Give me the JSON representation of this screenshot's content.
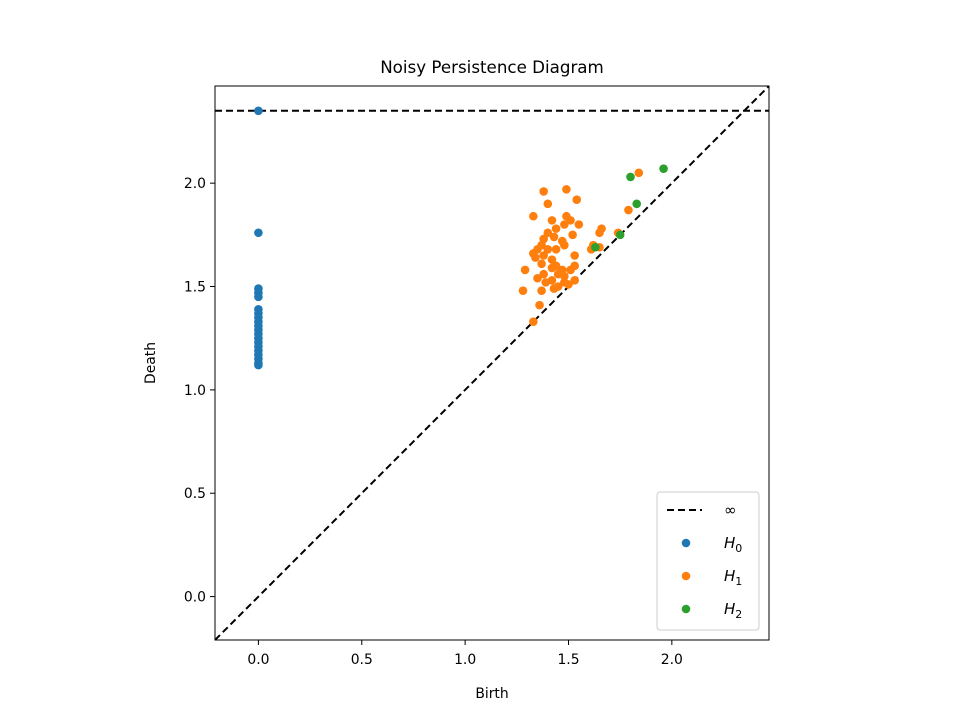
{
  "chart_data": {
    "type": "scatter",
    "title": "Noisy Persistence Diagram",
    "xlabel": "Birth",
    "ylabel": "Death",
    "xlim": [
      -0.21,
      2.47
    ],
    "ylim": [
      -0.21,
      2.47
    ],
    "xticks": [
      0.0,
      0.5,
      1.0,
      1.5,
      2.0
    ],
    "yticks": [
      0.0,
      0.5,
      1.0,
      1.5,
      2.0
    ],
    "xtick_labels": [
      "0.0",
      "0.5",
      "1.0",
      "1.5",
      "2.0"
    ],
    "ytick_labels": [
      "0.0",
      "0.5",
      "1.0",
      "1.5",
      "2.0"
    ],
    "infinity_line": 2.35,
    "legend_placement": "lower right",
    "legend": [
      {
        "kind": "line",
        "label": "∞",
        "color": "#000000"
      },
      {
        "kind": "point",
        "label": "H",
        "sub": "0",
        "color": "#1f77b4"
      },
      {
        "kind": "point",
        "label": "H",
        "sub": "1",
        "color": "#ff7f0e"
      },
      {
        "kind": "point",
        "label": "H",
        "sub": "2",
        "color": "#2ca02c"
      }
    ],
    "series": [
      {
        "name": "H0",
        "color": "#1f77b4",
        "points": [
          [
            0,
            2.35
          ],
          [
            0,
            1.76
          ],
          [
            0,
            1.49
          ],
          [
            0,
            1.47
          ],
          [
            0,
            1.45
          ],
          [
            0,
            1.39
          ],
          [
            0,
            1.37
          ],
          [
            0,
            1.35
          ],
          [
            0,
            1.33
          ],
          [
            0,
            1.31
          ],
          [
            0,
            1.29
          ],
          [
            0,
            1.27
          ],
          [
            0,
            1.25
          ],
          [
            0,
            1.23
          ],
          [
            0,
            1.21
          ],
          [
            0,
            1.19
          ],
          [
            0,
            1.17
          ],
          [
            0,
            1.15
          ],
          [
            0,
            1.13
          ],
          [
            0,
            1.12
          ]
        ]
      },
      {
        "name": "H1",
        "color": "#ff7f0e",
        "points": [
          [
            1.49,
            1.97
          ],
          [
            1.38,
            1.96
          ],
          [
            1.4,
            1.9
          ],
          [
            1.54,
            1.92
          ],
          [
            1.33,
            1.84
          ],
          [
            1.42,
            1.82
          ],
          [
            1.49,
            1.84
          ],
          [
            1.51,
            1.82
          ],
          [
            1.48,
            1.8
          ],
          [
            1.55,
            1.8
          ],
          [
            1.44,
            1.78
          ],
          [
            1.4,
            1.76
          ],
          [
            1.43,
            1.74
          ],
          [
            1.38,
            1.73
          ],
          [
            1.47,
            1.72
          ],
          [
            1.52,
            1.75
          ],
          [
            1.37,
            1.7
          ],
          [
            1.4,
            1.68
          ],
          [
            1.44,
            1.68
          ],
          [
            1.35,
            1.68
          ],
          [
            1.48,
            1.7
          ],
          [
            1.33,
            1.66
          ],
          [
            1.38,
            1.65
          ],
          [
            1.34,
            1.64
          ],
          [
            1.53,
            1.65
          ],
          [
            1.42,
            1.63
          ],
          [
            1.37,
            1.61
          ],
          [
            1.44,
            1.6
          ],
          [
            1.47,
            1.58
          ],
          [
            1.51,
            1.58
          ],
          [
            1.53,
            1.6
          ],
          [
            1.42,
            1.59
          ],
          [
            1.38,
            1.56
          ],
          [
            1.45,
            1.56
          ],
          [
            1.48,
            1.55
          ],
          [
            1.29,
            1.58
          ],
          [
            1.35,
            1.54
          ],
          [
            1.42,
            1.53
          ],
          [
            1.53,
            1.53
          ],
          [
            1.39,
            1.52
          ],
          [
            1.48,
            1.52
          ],
          [
            1.45,
            1.5
          ],
          [
            1.5,
            1.51
          ],
          [
            1.37,
            1.48
          ],
          [
            1.28,
            1.48
          ],
          [
            1.43,
            1.49
          ],
          [
            1.36,
            1.41
          ],
          [
            1.33,
            1.33
          ],
          [
            1.66,
            1.78
          ],
          [
            1.65,
            1.76
          ],
          [
            1.79,
            1.87
          ],
          [
            1.74,
            1.76
          ],
          [
            1.62,
            1.7
          ],
          [
            1.61,
            1.68
          ],
          [
            1.84,
            2.05
          ],
          [
            1.65,
            1.69
          ]
        ]
      },
      {
        "name": "H2",
        "color": "#2ca02c",
        "points": [
          [
            1.96,
            2.07
          ],
          [
            1.8,
            2.03
          ],
          [
            1.83,
            1.9
          ],
          [
            1.63,
            1.69
          ],
          [
            1.75,
            1.75
          ]
        ]
      }
    ]
  }
}
